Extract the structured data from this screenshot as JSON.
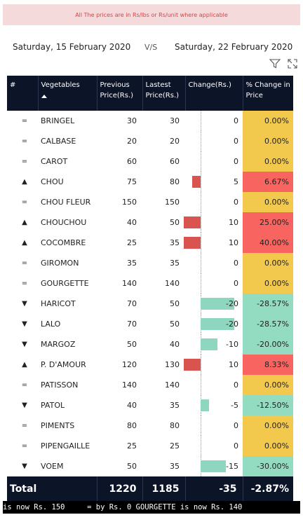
{
  "banner": {
    "text": "All The prices are in  Rs/lbs or Rs/unit where applicable"
  },
  "dates": {
    "left": "Saturday, 15 February 2020",
    "vs": "V/S",
    "right": "Saturday, 22 February 2020"
  },
  "icons": {
    "filter": "filter-icon",
    "expand": "focus-mode-icon"
  },
  "colors": {
    "header": "#0c1427",
    "up_bar": "#d9534f",
    "down_bar": "#8ed6bf",
    "pct_zero": "#f2c94c",
    "pct_up": "#f8645f",
    "pct_down": "#93dcc1"
  },
  "table": {
    "headers": {
      "index": "#",
      "veg": "Vegetables",
      "prev": "Previous Price(Rs.)",
      "last": "Lastest Price(Rs.)",
      "change": "Change(Rs.)",
      "pct": "% Change in Price"
    },
    "rows": [
      {
        "ind": "=",
        "veg": "BRINGEL",
        "prev": "30",
        "last": "30",
        "chg": "0",
        "change": 0,
        "pct": "0.00%"
      },
      {
        "ind": "=",
        "veg": "CALBASE",
        "prev": "20",
        "last": "20",
        "chg": "0",
        "change": 0,
        "pct": "0.00%"
      },
      {
        "ind": "=",
        "veg": "CAROT",
        "prev": "60",
        "last": "60",
        "chg": "0",
        "change": 0,
        "pct": "0.00%"
      },
      {
        "ind": "▲",
        "veg": "CHOU",
        "prev": "75",
        "last": "80",
        "chg": "5",
        "change": 5,
        "pct": "6.67%"
      },
      {
        "ind": "=",
        "veg": "CHOU FLEUR",
        "prev": "150",
        "last": "150",
        "chg": "0",
        "change": 0,
        "pct": "0.00%"
      },
      {
        "ind": "▲",
        "veg": "CHOUCHOU",
        "prev": "40",
        "last": "50",
        "chg": "10",
        "change": 10,
        "pct": "25.00%"
      },
      {
        "ind": "▲",
        "veg": "COCOMBRE",
        "prev": "25",
        "last": "35",
        "chg": "10",
        "change": 10,
        "pct": "40.00%"
      },
      {
        "ind": "=",
        "veg": "GIROMON",
        "prev": "35",
        "last": "35",
        "chg": "0",
        "change": 0,
        "pct": "0.00%"
      },
      {
        "ind": "=",
        "veg": "GOURGETTE",
        "prev": "140",
        "last": "140",
        "chg": "0",
        "change": 0,
        "pct": "0.00%"
      },
      {
        "ind": "▼",
        "veg": "HARICOT",
        "prev": "70",
        "last": "50",
        "chg": "-20",
        "change": -20,
        "pct": "-28.57%"
      },
      {
        "ind": "▼",
        "veg": "LALO",
        "prev": "70",
        "last": "50",
        "chg": "-20",
        "change": -20,
        "pct": "-28.57%"
      },
      {
        "ind": "▼",
        "veg": "MARGOZ",
        "prev": "50",
        "last": "40",
        "chg": "-10",
        "change": -10,
        "pct": "-20.00%"
      },
      {
        "ind": "▲",
        "veg": "P. D'AMOUR",
        "prev": "120",
        "last": "130",
        "chg": "10",
        "change": 10,
        "pct": "8.33%"
      },
      {
        "ind": "=",
        "veg": "PATISSON",
        "prev": "140",
        "last": "140",
        "chg": "0",
        "change": 0,
        "pct": "0.00%"
      },
      {
        "ind": "▼",
        "veg": "PATOL",
        "prev": "40",
        "last": "35",
        "chg": "-5",
        "change": -5,
        "pct": "-12.50%"
      },
      {
        "ind": "=",
        "veg": "PIMENTS",
        "prev": "80",
        "last": "80",
        "chg": "0",
        "change": 0,
        "pct": "0.00%"
      },
      {
        "ind": "=",
        "veg": "PIPENGAILLE",
        "prev": "25",
        "last": "25",
        "chg": "0",
        "change": 0,
        "pct": "0.00%"
      },
      {
        "ind": "▼",
        "veg": "VOEM",
        "prev": "50",
        "last": "35",
        "chg": "-15",
        "change": -15,
        "pct": "-30.00%"
      }
    ],
    "total": {
      "label": "Total",
      "prev": "1220",
      "last": "1185",
      "chg": "-35",
      "pct": "-2.87%"
    }
  },
  "ticker": {
    "text": "is now Rs. 150     = by Rs. 0 GOURGETTE is now Rs. 140"
  }
}
